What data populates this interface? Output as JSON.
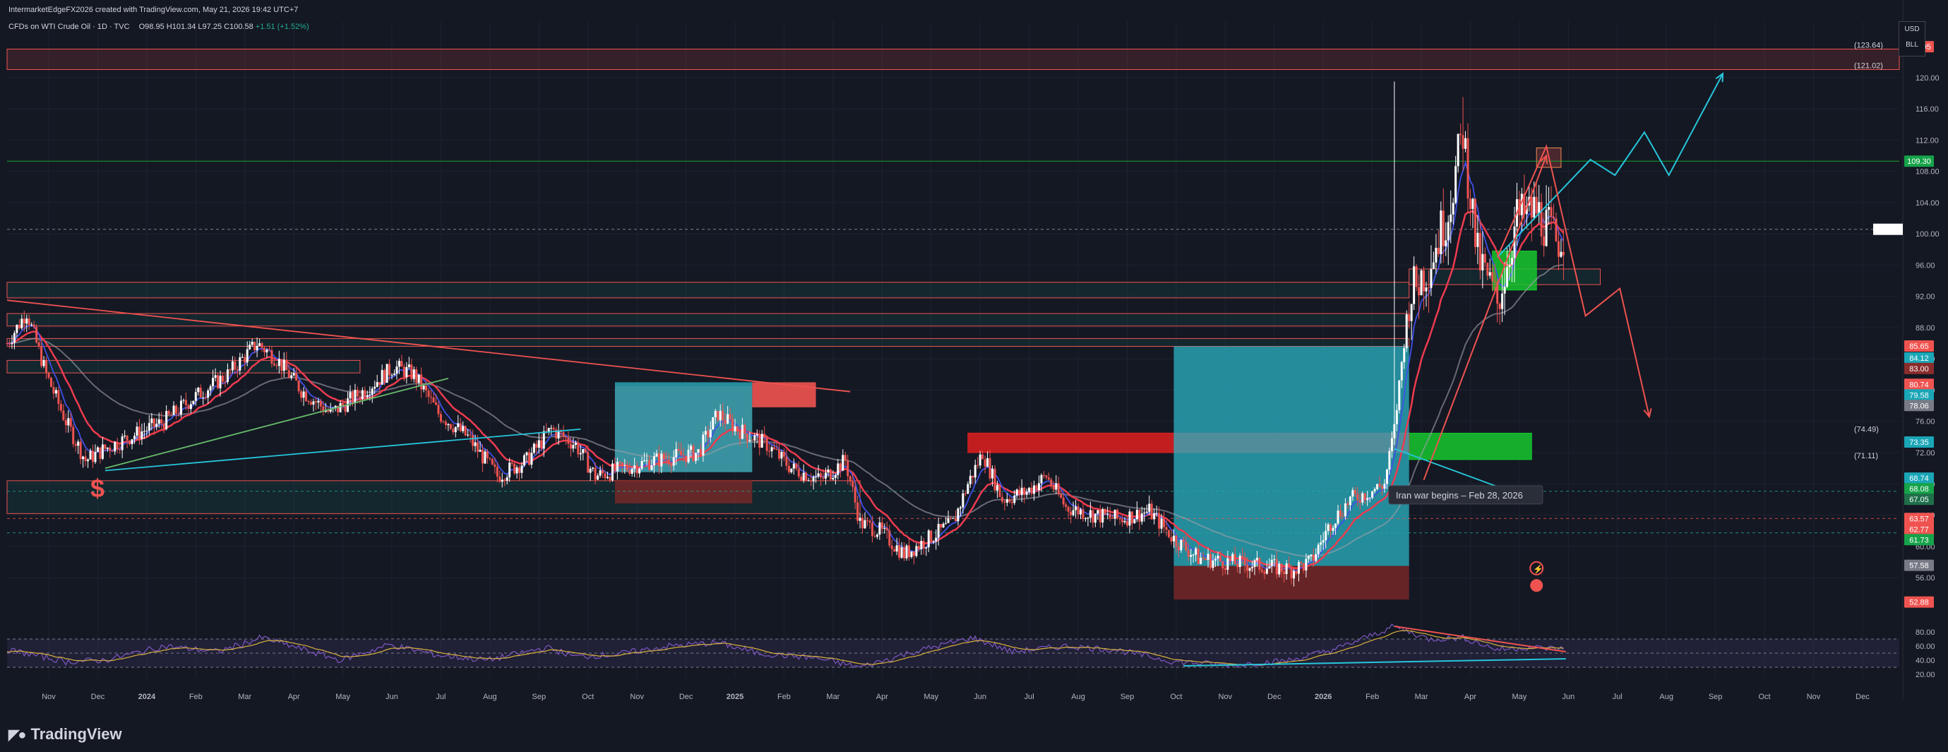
{
  "header": {
    "credit": "IntermarketEdgeFX2026 created with TradingView.com, May 21, 2026 19:42 UTC+7",
    "symbol": "CFDs on WTI Crude Oil · 1D · TVC",
    "open": "O98.95",
    "high": "H101.34",
    "low": "L97.25",
    "close": "C100.58",
    "change": "+1.51 (+1.52%)"
  },
  "currency": {
    "unit": "USD",
    "sub": "BLL"
  },
  "brand": "TradingView",
  "colors": {
    "background": "#141823",
    "up": "#22ab94",
    "down": "#ef5350",
    "ema_fast": "#3f51e6",
    "ema_slow": "#ee3b4f",
    "rsi": "#7e57c2",
    "rsi_ma": "#d9b23c",
    "teal_zone": "#2ab3c4",
    "green_zone": "#16c72e",
    "red_zone": "#e02020"
  },
  "chart_data": [
    {
      "type": "candlestick",
      "instrument": "CFDs on WTI Crude Oil",
      "timeframe": "1D",
      "x_ticks": [
        "Nov",
        "Dec",
        "2024",
        "Feb",
        "Mar",
        "Apr",
        "May",
        "Jun",
        "Jul",
        "Aug",
        "Sep",
        "Oct",
        "Nov",
        "Dec",
        "2025",
        "Feb",
        "Mar",
        "Apr",
        "May",
        "Jun",
        "Jul",
        "Aug",
        "Sep",
        "Oct",
        "Nov",
        "Dec",
        "2026",
        "Feb",
        "Mar",
        "Apr",
        "May",
        "Jun",
        "Jul",
        "Aug",
        "Sep",
        "Oct",
        "Nov",
        "Dec"
      ],
      "x_range_months": [
        0,
        38.6
      ],
      "y_ticks": [
        56,
        60,
        64,
        68,
        72,
        76,
        80,
        84,
        88,
        92,
        96,
        100,
        104,
        108,
        112,
        116,
        120
      ],
      "ylim": [
        49.5,
        124.5
      ],
      "last_price": 100.58,
      "price_path": [
        [
          0.0,
          86
        ],
        [
          0.4,
          90
        ],
        [
          0.8,
          82
        ],
        [
          1.2,
          76
        ],
        [
          1.6,
          71
        ],
        [
          2.0,
          72.5
        ],
        [
          2.5,
          74
        ],
        [
          3.2,
          76
        ],
        [
          3.8,
          79
        ],
        [
          4.5,
          82
        ],
        [
          5.1,
          86
        ],
        [
          5.5,
          84
        ],
        [
          6.0,
          80
        ],
        [
          6.6,
          77
        ],
        [
          7.3,
          80
        ],
        [
          7.9,
          83
        ],
        [
          8.3,
          82
        ],
        [
          8.8,
          77
        ],
        [
          9.4,
          74
        ],
        [
          10.0,
          69
        ],
        [
          10.6,
          71
        ],
        [
          11.1,
          75
        ],
        [
          11.6,
          73
        ],
        [
          12.0,
          69
        ],
        [
          12.6,
          70
        ],
        [
          13.2,
          71
        ],
        [
          14.1,
          72
        ],
        [
          14.5,
          77
        ],
        [
          14.9,
          75
        ],
        [
          15.5,
          73
        ],
        [
          16.0,
          70
        ],
        [
          16.6,
          68.5
        ],
        [
          17.1,
          71
        ],
        [
          17.4,
          63
        ],
        [
          17.8,
          62
        ],
        [
          18.3,
          59
        ],
        [
          18.8,
          61
        ],
        [
          19.3,
          63
        ],
        [
          19.6,
          68
        ],
        [
          19.9,
          72
        ],
        [
          20.3,
          66
        ],
        [
          20.8,
          67
        ],
        [
          21.2,
          69
        ],
        [
          21.6,
          65
        ],
        [
          22.2,
          64
        ],
        [
          22.7,
          63.5
        ],
        [
          23.3,
          64.5
        ],
        [
          23.8,
          61
        ],
        [
          24.3,
          58.5
        ],
        [
          24.9,
          58
        ],
        [
          25.6,
          57.5
        ],
        [
          26.2,
          57
        ],
        [
          26.6,
          58
        ],
        [
          27.0,
          63
        ],
        [
          27.4,
          66
        ],
        [
          27.8,
          67
        ],
        [
          28.1,
          68
        ],
        [
          28.3,
          75
        ],
        [
          28.6,
          92
        ],
        [
          29.0,
          96
        ],
        [
          29.4,
          103
        ],
        [
          29.7,
          113
        ],
        [
          30.0,
          97
        ],
        [
          30.4,
          91
        ],
        [
          30.8,
          102
        ],
        [
          31.2,
          103
        ],
        [
          31.6,
          99
        ],
        [
          31.8,
          100.58
        ]
      ],
      "highs_marked": [
        [
          28.3,
          119.5
        ],
        [
          29.7,
          117.5
        ]
      ],
      "indicators": [
        {
          "name": "EMA fast",
          "color": "blue"
        },
        {
          "name": "EMA slow",
          "color": "red"
        },
        {
          "name": "SMA",
          "color": "grey"
        }
      ],
      "price_labels": [
        {
          "value": "123.95",
          "style": "red"
        },
        {
          "value": "109.30",
          "style": "green"
        },
        {
          "value": "85.65",
          "style": "red"
        },
        {
          "value": "84.12",
          "style": "teal"
        },
        {
          "value": "83.00",
          "style": "dark-red"
        },
        {
          "value": "80.74",
          "style": "red"
        },
        {
          "value": "79.58",
          "style": "teal"
        },
        {
          "value": "78.06",
          "style": "grey"
        },
        {
          "value": "73.35",
          "style": "teal"
        },
        {
          "value": "68.74",
          "style": "teal"
        },
        {
          "value": "68.08",
          "style": "green"
        },
        {
          "value": "67.05",
          "style": "dark-green"
        },
        {
          "value": "63.57",
          "style": "red"
        },
        {
          "value": "62.77",
          "style": "red"
        },
        {
          "value": "61.73",
          "style": "green"
        },
        {
          "value": "57.58",
          "style": "grey"
        },
        {
          "value": "52.88",
          "style": "red"
        }
      ],
      "level_notes": [
        {
          "text": "(123.64)",
          "value": 123.64
        },
        {
          "text": "(121.02)",
          "value": 121.02
        },
        {
          "text": "(74.49)",
          "value": 74.49
        },
        {
          "text": "(71.11)",
          "value": 71.11
        }
      ],
      "zones": [
        {
          "kind": "resistance",
          "x": [
            0,
            39
          ],
          "y": [
            121.02,
            123.64
          ]
        },
        {
          "kind": "support",
          "x": [
            0,
            28.6
          ],
          "y": [
            91.8,
            93.8
          ]
        },
        {
          "kind": "support",
          "x": [
            0,
            28.6
          ],
          "y": [
            88.2,
            89.8
          ]
        },
        {
          "kind": "support",
          "x": [
            0,
            28.6
          ],
          "y": [
            85.6,
            86.6
          ]
        },
        {
          "kind": "support",
          "x": [
            0,
            7.2
          ],
          "y": [
            82.2,
            83.8
          ]
        },
        {
          "kind": "support",
          "x": [
            0,
            17.4
          ],
          "y": [
            64.2,
            68.4
          ]
        },
        {
          "kind": "support",
          "x": [
            28.6,
            32.5
          ],
          "y": [
            93.5,
            95.5
          ]
        },
        {
          "kind": "demand",
          "x": [
            28.6,
            31.1
          ],
          "y": [
            71.11,
            74.49
          ]
        },
        {
          "kind": "demand",
          "x": [
            30.3,
            31.2
          ],
          "y": [
            92.8,
            97.8
          ]
        },
        {
          "kind": "supply",
          "x": [
            19.6,
            28.6
          ],
          "y": [
            72.0,
            74.5
          ]
        },
        {
          "kind": "position",
          "x": [
            12.4,
            15.2
          ],
          "y": [
            69.5,
            81.0
          ]
        },
        {
          "kind": "position",
          "x": [
            12.4,
            15.2
          ],
          "y": [
            65.5,
            68.5
          ]
        },
        {
          "kind": "position",
          "x": [
            12.4,
            15.2
          ],
          "y": [
            69.5,
            80.5
          ]
        },
        {
          "kind": "position",
          "x": [
            23.8,
            28.6
          ],
          "y": [
            57.5,
            85.6
          ]
        },
        {
          "kind": "position",
          "x": [
            23.8,
            28.6
          ],
          "y": [
            53.2,
            57.5
          ]
        },
        {
          "kind": "target",
          "x": [
            31.2,
            31.7
          ],
          "y": [
            108.5,
            111.0
          ]
        }
      ],
      "trendlines": [
        {
          "color": "red",
          "points": [
            [
              0,
              91.5
            ],
            [
              17.2,
              79.8
            ]
          ]
        },
        {
          "color": "green",
          "points": [
            [
              2.0,
              70
            ],
            [
              9.0,
              81.5
            ]
          ]
        },
        {
          "color": "teal",
          "points": [
            [
              2.0,
              69.7
            ],
            [
              11.7,
              75
            ]
          ]
        },
        {
          "color": "teal",
          "points": [
            [
              28.3,
              72.5
            ],
            [
              30.9,
              66.5
            ]
          ]
        }
      ],
      "projections": [
        {
          "color": "teal",
          "points": [
            [
              30.4,
              97
            ],
            [
              32.3,
              109.5
            ],
            [
              32.8,
              107.5
            ],
            [
              33.4,
              113
            ],
            [
              33.9,
              107.5
            ],
            [
              35.0,
              120.5
            ]
          ]
        },
        {
          "color": "red",
          "points": [
            [
              30.4,
              97
            ],
            [
              31.4,
              111.2
            ],
            [
              32.2,
              89.5
            ],
            [
              32.9,
              93
            ],
            [
              33.5,
              76.6
            ]
          ]
        },
        {
          "color": "red",
          "points": [
            [
              28.9,
              68.5
            ],
            [
              31.4,
              110
            ]
          ]
        }
      ],
      "annotations": [
        {
          "text": "Iran war begins – Feb 28, 2026",
          "x": 28.3,
          "y": 66.5
        }
      ]
    },
    {
      "type": "line",
      "name": "RSI",
      "y_ticks": [
        20,
        40,
        60,
        80
      ],
      "ylim": [
        15,
        95
      ],
      "bands": [
        70,
        50,
        30
      ],
      "rsi_path": [
        [
          0,
          55
        ],
        [
          1.2,
          38
        ],
        [
          2.0,
          40
        ],
        [
          3.2,
          60
        ],
        [
          4.3,
          52
        ],
        [
          5.2,
          72
        ],
        [
          6.0,
          56
        ],
        [
          6.8,
          40
        ],
        [
          7.8,
          62
        ],
        [
          8.8,
          47
        ],
        [
          9.8,
          40
        ],
        [
          11.0,
          58
        ],
        [
          11.6,
          45
        ],
        [
          12.4,
          48
        ],
        [
          13.5,
          60
        ],
        [
          14.5,
          65
        ],
        [
          15.3,
          50
        ],
        [
          16.5,
          43
        ],
        [
          17.4,
          30
        ],
        [
          18.5,
          52
        ],
        [
          19.7,
          72
        ],
        [
          20.5,
          52
        ],
        [
          21.6,
          60
        ],
        [
          22.6,
          55
        ],
        [
          23.8,
          38
        ],
        [
          25.0,
          33
        ],
        [
          26.2,
          40
        ],
        [
          27.2,
          58
        ],
        [
          28.3,
          88
        ],
        [
          29.0,
          70
        ],
        [
          29.7,
          72
        ],
        [
          30.4,
          55
        ],
        [
          31.0,
          58
        ],
        [
          31.8,
          56
        ]
      ],
      "divergence_lines": [
        {
          "color": "red",
          "points": [
            [
              28.3,
              88
            ],
            [
              31.8,
              52
            ]
          ]
        },
        {
          "color": "teal",
          "points": [
            [
              24.0,
              32
            ],
            [
              31.8,
              42
            ]
          ]
        }
      ],
      "x_ticks": [
        "Nov",
        "Dec",
        "2024",
        "Feb",
        "Mar",
        "Apr",
        "May",
        "Jun",
        "Jul",
        "Aug",
        "Sep",
        "Oct",
        "Nov",
        "Dec",
        "2025",
        "Feb",
        "Mar",
        "Apr",
        "May",
        "Jun",
        "Jul",
        "Aug",
        "Sep",
        "Oct",
        "Nov",
        "Dec",
        "2026",
        "Feb",
        "Mar",
        "Apr",
        "May",
        "Jun",
        "Jul",
        "Aug",
        "Sep",
        "Oct",
        "Nov",
        "Dec"
      ]
    }
  ]
}
